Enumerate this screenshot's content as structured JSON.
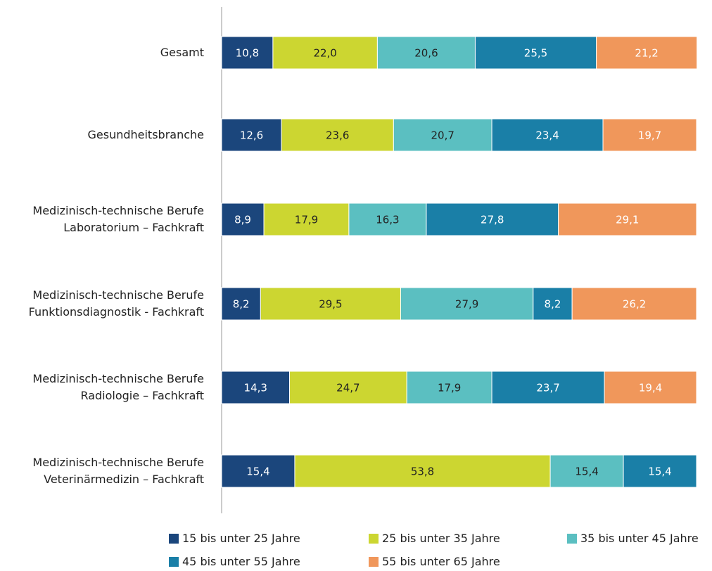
{
  "chart_data": {
    "type": "stacked-bar-horizontal",
    "categories": [
      "Gesamt",
      "Gesundheitsbranche",
      "Medizinisch-technische Berufe\nLaboratorium – Fachkraft",
      "Medizinisch-technische Berufe\nFunktionsdiagnostik - Fachkraft",
      "Medizinisch-technische Berufe\nRadiologie – Fachkraft",
      "Medizinisch-technische Berufe\nVeterinärmedizin – Fachkraft"
    ],
    "xlim": [
      0,
      100
    ],
    "series": [
      {
        "name": "15 bis unter 25 Jahre",
        "color": "#1b467c",
        "values": [
          10.8,
          12.6,
          8.9,
          8.2,
          14.3,
          15.4
        ],
        "value_labels": [
          "10,8",
          "12,6",
          "8,9",
          "8,2",
          "14,3",
          "15,4"
        ]
      },
      {
        "name": "25 bis unter 35 Jahre",
        "color": "#ccd631",
        "values": [
          22.0,
          23.6,
          17.9,
          29.5,
          24.7,
          53.8
        ],
        "value_labels": [
          "22,0",
          "23,6",
          "17,9",
          "29,5",
          "24,7",
          "53,8"
        ]
      },
      {
        "name": "35 bis unter 45 Jahre",
        "color": "#5bbfc1",
        "values": [
          20.6,
          20.7,
          16.3,
          27.9,
          17.9,
          15.4
        ],
        "value_labels": [
          "20,6",
          "20,7",
          "16,3",
          "27,9",
          "17,9",
          "15,4"
        ]
      },
      {
        "name": "45 bis unter 55 Jahre",
        "color": "#1a7fa7",
        "values": [
          25.5,
          23.4,
          27.8,
          8.2,
          23.7,
          15.4
        ],
        "value_labels": [
          "25,5",
          "23,4",
          "27,8",
          "8,2",
          "23,7",
          "15,4"
        ]
      },
      {
        "name": "55 bis unter 65 Jahre",
        "color": "#f0975b",
        "values": [
          21.2,
          19.7,
          29.1,
          26.2,
          19.4,
          null
        ],
        "value_labels": [
          "21,2",
          "19,7",
          "29,1",
          "26,2",
          "19,4",
          null
        ]
      }
    ]
  }
}
